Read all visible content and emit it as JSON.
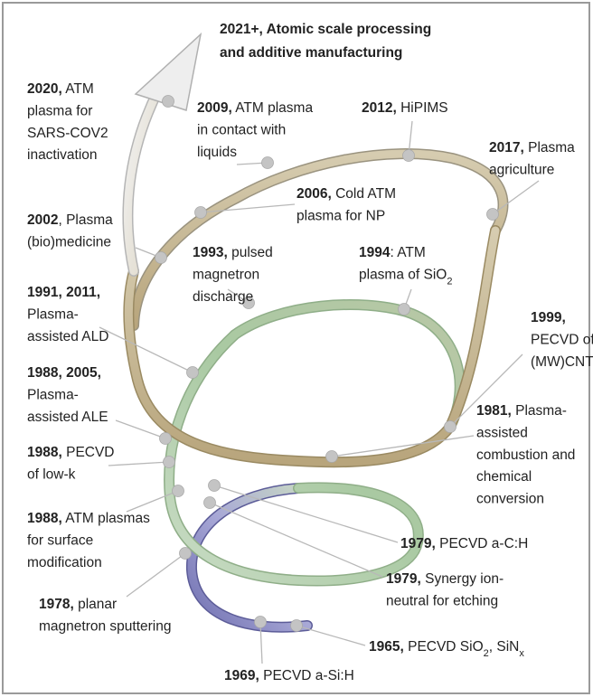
{
  "title": [
    "2021+, Atomic scale processing",
    "and additive manufacturing"
  ],
  "events": [
    {
      "lines": [
        [
          {
            "bold": "2020,"
          },
          {
            "text": " ATM"
          }
        ],
        [
          {
            "text": "plasma for"
          }
        ],
        [
          {
            "text": "SARS-COV2"
          }
        ],
        [
          {
            "text": "inactivation"
          }
        ]
      ]
    },
    {
      "lines": [
        [
          {
            "bold": "2009,"
          },
          {
            "text": " ATM plasma"
          }
        ],
        [
          {
            "text": "in contact with"
          }
        ],
        [
          {
            "text": "liquids"
          }
        ]
      ]
    },
    {
      "lines": [
        [
          {
            "bold": "2012,"
          },
          {
            "text": " HiPIMS"
          }
        ]
      ]
    },
    {
      "lines": [
        [
          {
            "bold": "2017,"
          },
          {
            "text": " Plasma"
          }
        ],
        [
          {
            "text": "agriculture"
          }
        ]
      ]
    },
    {
      "lines": [
        [
          {
            "bold": "2006,"
          },
          {
            "text": " Cold ATM"
          }
        ],
        [
          {
            "text": "plasma for NP"
          }
        ]
      ]
    },
    {
      "lines": [
        [
          {
            "bold": "2002"
          },
          {
            "text": ", Plasma"
          }
        ],
        [
          {
            "text": "(bio)medicine"
          }
        ]
      ]
    },
    {
      "lines": [
        [
          {
            "bold": "1993,"
          },
          {
            "text": " pulsed"
          }
        ],
        [
          {
            "text": "magnetron"
          }
        ],
        [
          {
            "text": "discharge"
          }
        ]
      ]
    },
    {
      "lines": [
        [
          {
            "bold": "1994"
          },
          {
            "text": ": ATM"
          }
        ],
        [
          {
            "text": "plasma of SiO"
          },
          {
            "sub": "2"
          }
        ]
      ]
    },
    {
      "lines": [
        [
          {
            "bold": "1991, 2011,"
          }
        ],
        [
          {
            "text": "Plasma-"
          }
        ],
        [
          {
            "text": "assisted ALD"
          }
        ]
      ]
    },
    {
      "lines": [
        [
          {
            "bold": "1999,"
          }
        ],
        [
          {
            "text": "PECVD of"
          }
        ],
        [
          {
            "text": "(MW)CNT"
          }
        ]
      ]
    },
    {
      "lines": [
        [
          {
            "bold": "1988, 2005,"
          }
        ],
        [
          {
            "text": "Plasma-"
          }
        ],
        [
          {
            "text": "assisted ALE"
          }
        ]
      ]
    },
    {
      "lines": [
        [
          {
            "bold": "1981,"
          },
          {
            "text": " Plasma-"
          }
        ],
        [
          {
            "text": "assisted"
          }
        ],
        [
          {
            "text": "combustion and"
          }
        ],
        [
          {
            "text": "chemical"
          }
        ],
        [
          {
            "text": "conversion"
          }
        ]
      ]
    },
    {
      "lines": [
        [
          {
            "bold": "1988,"
          },
          {
            "text": " PECVD"
          }
        ],
        [
          {
            "text": "of low-k"
          }
        ]
      ]
    },
    {
      "lines": [
        [
          {
            "bold": "1988,"
          },
          {
            "text": " ATM plasmas"
          }
        ],
        [
          {
            "text": "for surface"
          }
        ],
        [
          {
            "text": "modification"
          }
        ]
      ]
    },
    {
      "lines": [
        [
          {
            "bold": "1979,"
          },
          {
            "text": " PECVD a-C:H"
          }
        ]
      ]
    },
    {
      "lines": [
        [
          {
            "bold": "1979,"
          },
          {
            "text": " Synergy ion-"
          }
        ],
        [
          {
            "text": "neutral for etching"
          }
        ]
      ]
    },
    {
      "lines": [
        [
          {
            "bold": "1978,"
          },
          {
            "text": " planar"
          }
        ],
        [
          {
            "text": "magnetron sputtering"
          }
        ]
      ]
    },
    {
      "lines": [
        [
          {
            "bold": "1965,"
          },
          {
            "text": " PECVD SiO"
          },
          {
            "sub": "2"
          },
          {
            "text": ", SiN"
          },
          {
            "sub": "x"
          }
        ]
      ]
    },
    {
      "lines": [
        [
          {
            "bold": "1969,"
          },
          {
            "text": " PECVD a-Si:H"
          }
        ]
      ]
    }
  ]
}
